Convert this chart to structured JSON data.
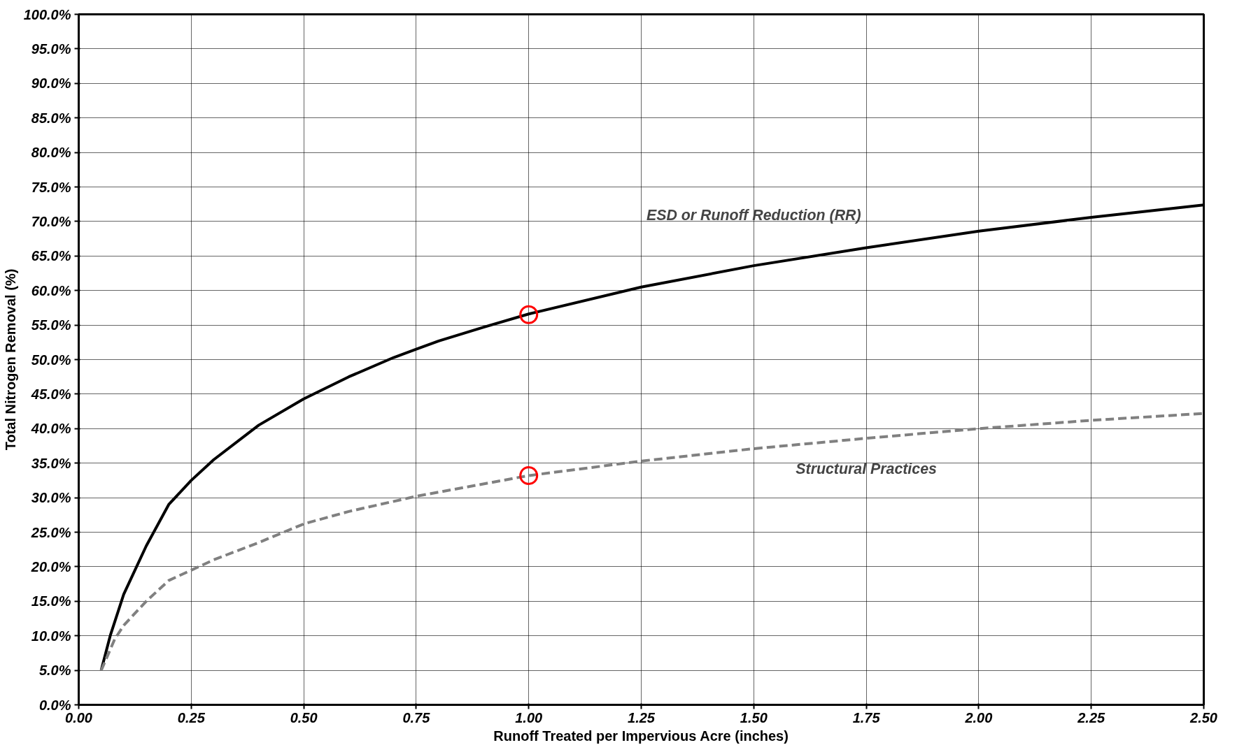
{
  "chart_data": {
    "type": "line",
    "xlabel": "Runoff Treated per Impervious Acre (inches)",
    "ylabel": "Total Nitrogen Removal (%)",
    "xlim": [
      0,
      2.5
    ],
    "ylim": [
      0,
      100
    ],
    "xticks": [
      {
        "value": 0,
        "label": "0.00"
      },
      {
        "value": 0.25,
        "label": "0.25"
      },
      {
        "value": 0.5,
        "label": "0.50"
      },
      {
        "value": 0.75,
        "label": "0.75"
      },
      {
        "value": 1,
        "label": "1.00"
      },
      {
        "value": 1.25,
        "label": "1.25"
      },
      {
        "value": 1.5,
        "label": "1.50"
      },
      {
        "value": 1.75,
        "label": "1.75"
      },
      {
        "value": 2,
        "label": "2.00"
      },
      {
        "value": 2.25,
        "label": "2.25"
      },
      {
        "value": 2.5,
        "label": "2.50"
      }
    ],
    "yticks": [
      {
        "value": 0,
        "label": "0.0%"
      },
      {
        "value": 5,
        "label": "5.0%"
      },
      {
        "value": 10,
        "label": "10.0%"
      },
      {
        "value": 15,
        "label": "15.0%"
      },
      {
        "value": 20,
        "label": "20.0%"
      },
      {
        "value": 25,
        "label": "25.0%"
      },
      {
        "value": 30,
        "label": "30.0%"
      },
      {
        "value": 35,
        "label": "35.0%"
      },
      {
        "value": 40,
        "label": "40.0%"
      },
      {
        "value": 45,
        "label": "45.0%"
      },
      {
        "value": 50,
        "label": "50.0%"
      },
      {
        "value": 55,
        "label": "55.0%"
      },
      {
        "value": 60,
        "label": "60.0%"
      },
      {
        "value": 65,
        "label": "65.0%"
      },
      {
        "value": 70,
        "label": "70.0%"
      },
      {
        "value": 75,
        "label": "75.0%"
      },
      {
        "value": 80,
        "label": "80.0%"
      },
      {
        "value": 85,
        "label": "85.0%"
      },
      {
        "value": 90,
        "label": "90.0%"
      },
      {
        "value": 95,
        "label": "95.0%"
      },
      {
        "value": 100,
        "label": "100.0%"
      }
    ],
    "grid": true,
    "series": [
      {
        "name": "ESD or Runoff Reduction (RR)",
        "color": "#000000",
        "line_style": "solid",
        "x": [
          0.05,
          0.07,
          0.1,
          0.15,
          0.2,
          0.25,
          0.3,
          0.4,
          0.5,
          0.6,
          0.7,
          0.75,
          0.8,
          0.9,
          1.0,
          1.25,
          1.5,
          1.75,
          2.0,
          2.25,
          2.5
        ],
        "values": [
          5,
          10,
          16,
          23,
          29,
          32.5,
          35.5,
          40.5,
          44.3,
          47.5,
          50.3,
          51.5,
          52.7,
          54.7,
          56.6,
          60.5,
          63.6,
          66.2,
          68.6,
          70.6,
          72.4
        ]
      },
      {
        "name": "Structural Practices",
        "color": "#808080",
        "line_style": "dashed",
        "x": [
          0.05,
          0.08,
          0.1,
          0.15,
          0.2,
          0.25,
          0.3,
          0.4,
          0.5,
          0.6,
          0.75,
          1.0,
          1.25,
          1.5,
          1.75,
          2.0,
          2.25,
          2.5
        ],
        "values": [
          5,
          9.5,
          11.5,
          15,
          18,
          19.5,
          21,
          23.5,
          26.2,
          28,
          30.2,
          33.2,
          35.3,
          37.1,
          38.6,
          40,
          41.2,
          42.2
        ]
      },
      {
        "type": "scatter",
        "marker": "circle",
        "color": "#ff0000",
        "x": [
          1.0,
          1.0
        ],
        "values": [
          56.5,
          33.2
        ]
      }
    ]
  }
}
